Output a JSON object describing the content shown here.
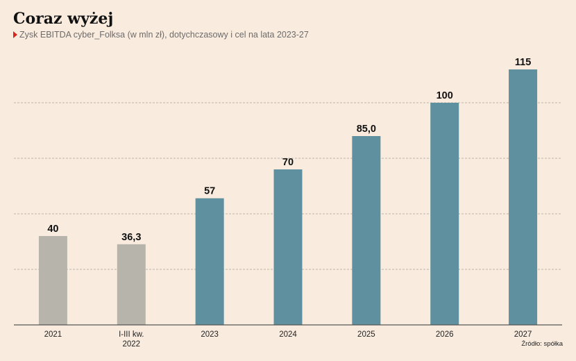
{
  "title": "Coraz wyżej",
  "subtitle": "Zysk EBITDA cyber_Folksa (w mln zł), dotychczasowy i cel na lata 2023-27",
  "source": "Źródło: spółka",
  "colors": {
    "historical": "#b7b5ab",
    "target": "#5f909f",
    "background": "#f9ecdf",
    "accent": "#d9261c"
  },
  "chart_data": {
    "type": "bar",
    "categories": [
      "2021",
      "I-III kw.\n2022",
      "2023",
      "2024",
      "2025",
      "2026",
      "2027"
    ],
    "values": [
      40,
      36.3,
      57,
      70,
      85.0,
      100,
      115
    ],
    "value_labels": [
      "40",
      "36,3",
      "57",
      "70",
      "85,0",
      "100",
      "115"
    ],
    "bar_kind": [
      "historical",
      "historical",
      "target",
      "target",
      "target",
      "target",
      "target"
    ],
    "title": "Coraz wyżej",
    "xlabel": "",
    "ylabel": "",
    "ylim": [
      0,
      120
    ],
    "grid": true,
    "legend": "none"
  }
}
